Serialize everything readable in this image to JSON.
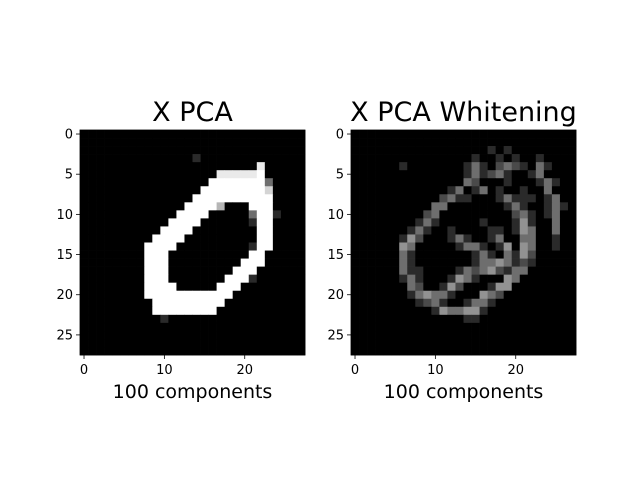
{
  "chart_data": [
    {
      "type": "heatmap",
      "title": "X PCA",
      "xlabel": "100 components",
      "ylabel": "",
      "colormap": "gray",
      "grid": false,
      "image_size": [
        28,
        28
      ],
      "xlim": [
        -0.5,
        27.5
      ],
      "ylim": [
        27.5,
        -0.5
      ],
      "xticks": [
        0,
        10,
        20
      ],
      "yticks": [
        0,
        5,
        10,
        15,
        20,
        25
      ],
      "pixels": [
        "............................",
        "............................",
        "............................",
        "..............:.............",
        "......................#.....",
        ".................#####@.....",
        "................@@@@@@@+....",
        "...............@@@@@@@@%....",
        "..............@@@@@@@@@@....",
        ".............@@@@*...@@@....",
        "............@@@@.....+@@:...",
        "...........@@@@......:@@....",
        "..........@@@@........@@....",
        ".........@@@@.........@@....",
        "........@@@@.........:@@....",
        "........@@@..........@@.....",
        "........@@@.........@@@.....",
        "........@@@........@@@......",
        "........@@@.......@@@:......",
        "........@@@@.....@@@........",
        "........@@@@@@@@@@@.........",
        ".........@@@@@@@@@..........",
        ".........@@@@@@@@...........",
        "..........:.................",
        "............................",
        "............................",
        "............................",
        "............................"
      ]
    },
    {
      "type": "heatmap",
      "title": "X PCA Whitening",
      "xlabel": "100 components",
      "ylabel": "",
      "colormap": "gray",
      "grid": false,
      "image_size": [
        28,
        28
      ],
      "xlim": [
        -0.5,
        27.5
      ],
      "ylim": [
        27.5,
        -0.5
      ],
      "xticks": [
        0,
        10,
        20
      ],
      "yticks": [
        0,
        5,
        10,
        15,
        20,
        25
      ],
      "pixels": [
        "............................",
        "............................",
        ".................:.:........",
        "...............:..:.:..:....",
        "......:.......:+:.-+-:.+:...",
        "..............:+:-+:..:+....",
        "..............+-...:...:+:..",
        "............:+.:+.:..:..+...",
        "...........-+::...:+:::.:+..",
        "..........++.......:+:..:+:.",
        ".........-+.........-+:.:+..",
        "........:+:.....:...:=:..+..",
        ".......:+:..:....::.:=+..+..",
        "......:=-...:+:..:+..++..:..",
        "......=+.....:++:.:=.=+..:..",
        "......+:.......:+:.+:=-.....",
        "......+:.......:++=+:-:.....",
        "......+::....:+-+=-:++......",
        "......:+:...:=+:...=+.......",
        ".......+-..:=-...:==........",
        ".......:+=++:...=+-.........",
        "........:-+:..:++:..........",
        "..........:=++==:...........",
        "..............::............",
        "............................",
        "............................",
        "............................",
        "............................"
      ]
    }
  ]
}
